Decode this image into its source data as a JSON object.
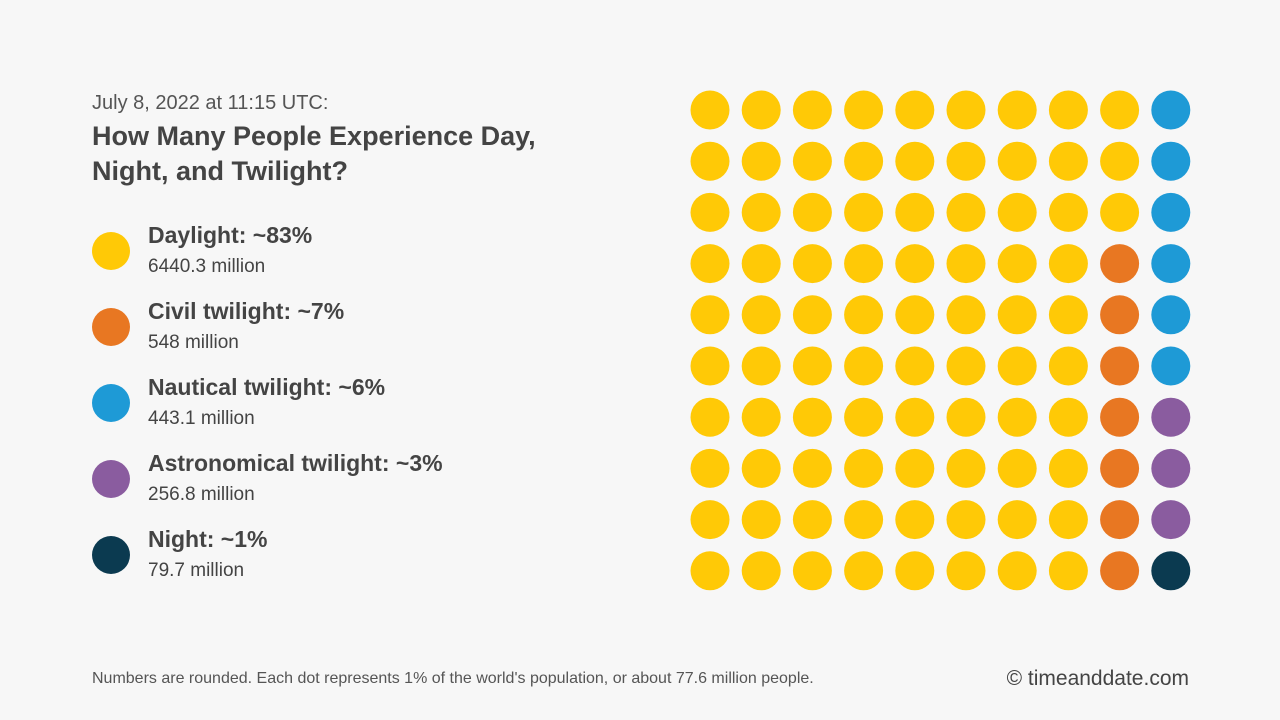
{
  "header": {
    "subtitle": "July 8, 2022 at 11:15 UTC:",
    "title": "How Many People Experience Day, Night, and Twilight?"
  },
  "chart_data": {
    "type": "waffle",
    "units_per_dot": "1%",
    "grid": [
      10,
      10
    ],
    "fill_order": "column-major",
    "series": [
      {
        "name": "Daylight",
        "label": "Daylight: ~83%",
        "percent": 83,
        "people": "6440.3 million",
        "color": "#ffc906"
      },
      {
        "name": "Civil twilight",
        "label": "Civil twilight: ~7%",
        "percent": 7,
        "people": "548 million",
        "color": "#e87722"
      },
      {
        "name": "Nautical twilight",
        "label": "Nautical twilight: ~6%",
        "percent": 6,
        "people": "443.1 million",
        "color": "#1e9ad6"
      },
      {
        "name": "Astronomical twilight",
        "label": "Astronomical twilight: ~3%",
        "percent": 3,
        "people": "256.8 million",
        "color": "#8a5c9f"
      },
      {
        "name": "Night",
        "label": "Night: ~1%",
        "percent": 1,
        "people": "79.7 million",
        "color": "#0b3a50"
      }
    ]
  },
  "footer": {
    "note": "Numbers are rounded. Each dot represents 1% of the world's population, or about 77.6 million people.",
    "credit": "© timeanddate.com"
  }
}
